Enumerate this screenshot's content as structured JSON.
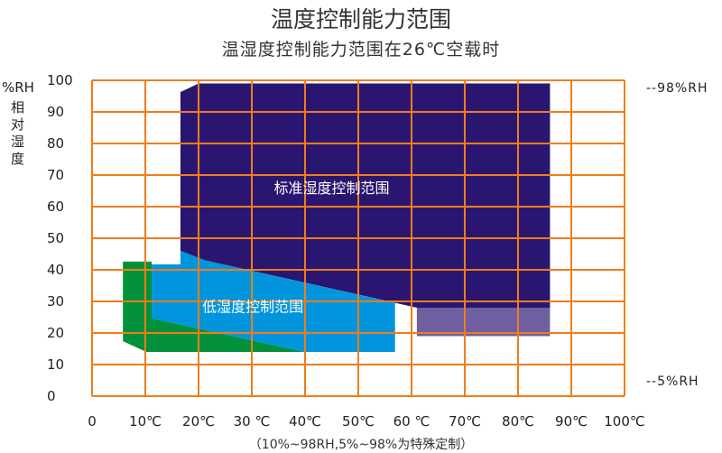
{
  "title": "温度控制能力范围",
  "subtitle": "温湿度控制能力范围在26℃空载时",
  "note": "（10%~98RH,5%~98%为特殊定制）",
  "chart_data": {
    "type": "area",
    "title": "温度控制能力范围",
    "subtitle": "温湿度控制能力范围在26℃空载时",
    "ylabel_unit": "%RH",
    "ylabel": "相对湿度",
    "xlim": [
      0,
      100
    ],
    "ylim": [
      0,
      100
    ],
    "grid": true,
    "x_ticks": [
      "0",
      "10℃",
      "20℃",
      "30 ℃",
      "40℃",
      "50℃",
      "60 ℃",
      "70℃",
      "80℃",
      "90℃",
      "100℃"
    ],
    "y_ticks": [
      "0",
      "10",
      "20",
      "30",
      "40",
      "50",
      "60",
      "70",
      "80",
      "90",
      "100"
    ],
    "right_annotations": [
      "--98%RH",
      "--5%RH"
    ],
    "regions": [
      {
        "name": "标准湿度控制范围",
        "color": "#2a1670",
        "label_at": [
          45,
          66
        ],
        "points": [
          [
            16.6,
            96.3
          ],
          [
            20,
            99
          ],
          [
            86,
            99
          ],
          [
            86,
            28
          ],
          [
            61,
            28
          ],
          [
            21.2,
            43
          ],
          [
            16.6,
            46
          ]
        ]
      },
      {
        "name": "",
        "color": "#6e5fa0",
        "points": [
          [
            61,
            28
          ],
          [
            86,
            28
          ],
          [
            86,
            19
          ],
          [
            61,
            19
          ]
        ]
      },
      {
        "name": "",
        "color": "#00913a",
        "points": [
          [
            5.8,
            42.6
          ],
          [
            11.2,
            42.6
          ],
          [
            11.2,
            24.6
          ],
          [
            40,
            14
          ],
          [
            10.2,
            14
          ],
          [
            5.8,
            17.4
          ]
        ]
      },
      {
        "name": "低湿度控制范围",
        "color": "#0095dc",
        "label_at": [
          30.2,
          28.5
        ],
        "points": [
          [
            11.2,
            41.7
          ],
          [
            16.6,
            41.7
          ],
          [
            16.6,
            46
          ],
          [
            21.2,
            43
          ],
          [
            56.9,
            29.5
          ],
          [
            56.9,
            14
          ],
          [
            40,
            14
          ],
          [
            11.2,
            24.6
          ]
        ]
      }
    ],
    "grid_color": "#f07d1a"
  }
}
